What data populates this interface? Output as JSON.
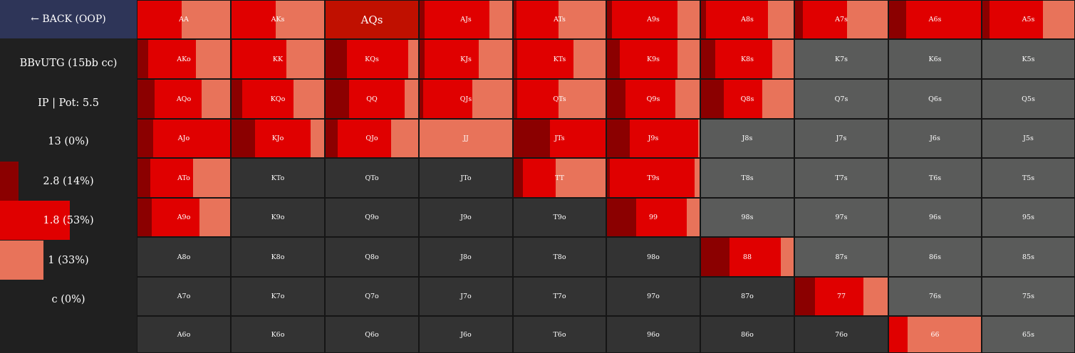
{
  "sidebar": {
    "back_label": "← BACK (OOP)",
    "rows": [
      {
        "text": "BBvUTG (15bb cc)",
        "bar_fraction": 0,
        "bar_color": ""
      },
      {
        "text": "IP | Pot: 5.5",
        "bar_fraction": 0,
        "bar_color": ""
      },
      {
        "text": "13 (0%)",
        "bar_fraction": 0,
        "bar_color": ""
      },
      {
        "text": "2.8 (14%)",
        "bar_fraction": 0.14,
        "bar_color": "#8b0000"
      },
      {
        "text": "1.8 (53%)",
        "bar_fraction": 0.53,
        "bar_color": "#e00000"
      },
      {
        "text": "1 (33%)",
        "bar_fraction": 0.33,
        "bar_color": "#e8735a"
      },
      {
        "text": "c (0%)",
        "bar_fraction": 0,
        "bar_color": ""
      }
    ]
  },
  "colors": {
    "raise_2_8": "#8b0000",
    "raise_1_8": "#e00000",
    "raise_1": "#e8735a",
    "suited_empty": "#5a5b5a",
    "offsuit_empty": "#333333",
    "header_bg": "#2e3558",
    "aqs_highlight": "#c01000"
  },
  "grid": {
    "rows": [
      [
        {
          "hand": "AA",
          "mix": [
            0,
            0.47,
            0.53
          ]
        },
        {
          "hand": "AKs",
          "mix": [
            0,
            0.47,
            0.53
          ]
        },
        {
          "hand": "AQs",
          "mix": [],
          "highlight": true
        },
        {
          "hand": "AJs",
          "mix": [
            0.05,
            0.69,
            0.26
          ]
        },
        {
          "hand": "ATs",
          "mix": [
            0.03,
            0.45,
            0.52
          ]
        },
        {
          "hand": "A9s",
          "mix": [
            0.05,
            0.7,
            0.25
          ]
        },
        {
          "hand": "A8s",
          "mix": [
            0.05,
            0.66,
            0.29
          ]
        },
        {
          "hand": "A7s",
          "mix": [
            0.08,
            0.47,
            0.45
          ]
        },
        {
          "hand": "A6s",
          "mix": [
            0.18,
            0.82,
            0
          ]
        },
        {
          "hand": "A5s",
          "mix": [
            0.08,
            0.57,
            0.35
          ]
        }
      ],
      [
        {
          "hand": "AKo",
          "mix": [
            0.11,
            0.51,
            0.38
          ]
        },
        {
          "hand": "KK",
          "mix": [
            0.01,
            0.57,
            0.42
          ]
        },
        {
          "hand": "KQs",
          "mix": [
            0.23,
            0.65,
            0.12
          ]
        },
        {
          "hand": "KJs",
          "mix": [
            0.05,
            0.58,
            0.37
          ]
        },
        {
          "hand": "KTs",
          "mix": [
            0.04,
            0.6,
            0.36
          ]
        },
        {
          "hand": "K9s",
          "mix": [
            0.14,
            0.61,
            0.25
          ]
        },
        {
          "hand": "K8s",
          "mix": [
            0.15,
            0.61,
            0.24
          ]
        },
        {
          "hand": "K7s",
          "mix": []
        },
        {
          "hand": "K6s",
          "mix": []
        },
        {
          "hand": "K5s",
          "mix": []
        }
      ],
      [
        {
          "hand": "AQo",
          "mix": [
            0.18,
            0.5,
            0.32
          ]
        },
        {
          "hand": "KQo",
          "mix": [
            0.11,
            0.55,
            0.34
          ]
        },
        {
          "hand": "QQ",
          "mix": [
            0.25,
            0.59,
            0.16
          ]
        },
        {
          "hand": "QJs",
          "mix": [
            0.04,
            0.52,
            0.44
          ]
        },
        {
          "hand": "QTs",
          "mix": [
            0.04,
            0.44,
            0.52
          ]
        },
        {
          "hand": "Q9s",
          "mix": [
            0.2,
            0.53,
            0.27
          ]
        },
        {
          "hand": "Q8s",
          "mix": [
            0.24,
            0.41,
            0.35
          ]
        },
        {
          "hand": "Q7s",
          "mix": []
        },
        {
          "hand": "Q6s",
          "mix": []
        },
        {
          "hand": "Q5s",
          "mix": []
        }
      ],
      [
        {
          "hand": "AJo",
          "mix": [
            0.17,
            0.82,
            0.01
          ]
        },
        {
          "hand": "KJo",
          "mix": [
            0.25,
            0.59,
            0.16
          ]
        },
        {
          "hand": "QJo",
          "mix": [
            0.13,
            0.57,
            0.3
          ]
        },
        {
          "hand": "JJ",
          "mix": [
            0,
            0,
            1
          ]
        },
        {
          "hand": "JTs",
          "mix": [
            0.39,
            0.61,
            0
          ]
        },
        {
          "hand": "J9s",
          "mix": [
            0.24,
            0.73,
            0.03
          ]
        },
        {
          "hand": "J8s",
          "mix": []
        },
        {
          "hand": "J7s",
          "mix": []
        },
        {
          "hand": "J6s",
          "mix": []
        },
        {
          "hand": "J5s",
          "mix": []
        }
      ],
      [
        {
          "hand": "ATo",
          "mix": [
            0.14,
            0.45,
            0.41
          ]
        },
        {
          "hand": "KTo",
          "mix": []
        },
        {
          "hand": "QTo",
          "mix": []
        },
        {
          "hand": "JTo",
          "mix": []
        },
        {
          "hand": "TT",
          "mix": [
            0.1,
            0.35,
            0.55
          ]
        },
        {
          "hand": "T9s",
          "mix": [
            0.03,
            0.9,
            0.07
          ]
        },
        {
          "hand": "T8s",
          "mix": []
        },
        {
          "hand": "T7s",
          "mix": []
        },
        {
          "hand": "T6s",
          "mix": []
        },
        {
          "hand": "T5s",
          "mix": []
        }
      ],
      [
        {
          "hand": "A9o",
          "mix": [
            0.15,
            0.51,
            0.34
          ]
        },
        {
          "hand": "K9o",
          "mix": []
        },
        {
          "hand": "Q9o",
          "mix": []
        },
        {
          "hand": "J9o",
          "mix": []
        },
        {
          "hand": "T9o",
          "mix": []
        },
        {
          "hand": "99",
          "mix": [
            0.31,
            0.54,
            0.15
          ]
        },
        {
          "hand": "98s",
          "mix": []
        },
        {
          "hand": "97s",
          "mix": []
        },
        {
          "hand": "96s",
          "mix": []
        },
        {
          "hand": "95s",
          "mix": []
        }
      ],
      [
        {
          "hand": "A8o",
          "mix": []
        },
        {
          "hand": "K8o",
          "mix": []
        },
        {
          "hand": "Q8o",
          "mix": []
        },
        {
          "hand": "J8o",
          "mix": []
        },
        {
          "hand": "T8o",
          "mix": []
        },
        {
          "hand": "98o",
          "mix": []
        },
        {
          "hand": "88",
          "mix": [
            0.3,
            0.55,
            0.15
          ]
        },
        {
          "hand": "87s",
          "mix": []
        },
        {
          "hand": "86s",
          "mix": []
        },
        {
          "hand": "85s",
          "mix": []
        }
      ],
      [
        {
          "hand": "A7o",
          "mix": []
        },
        {
          "hand": "K7o",
          "mix": []
        },
        {
          "hand": "Q7o",
          "mix": []
        },
        {
          "hand": "J7o",
          "mix": []
        },
        {
          "hand": "T7o",
          "mix": []
        },
        {
          "hand": "97o",
          "mix": []
        },
        {
          "hand": "87o",
          "mix": []
        },
        {
          "hand": "77",
          "mix": [
            0.21,
            0.52,
            0.27
          ]
        },
        {
          "hand": "76s",
          "mix": []
        },
        {
          "hand": "75s",
          "mix": []
        }
      ],
      [
        {
          "hand": "A6o",
          "mix": []
        },
        {
          "hand": "K6o",
          "mix": []
        },
        {
          "hand": "Q6o",
          "mix": []
        },
        {
          "hand": "J6o",
          "mix": []
        },
        {
          "hand": "T6o",
          "mix": []
        },
        {
          "hand": "96o",
          "mix": []
        },
        {
          "hand": "86o",
          "mix": []
        },
        {
          "hand": "76o",
          "mix": []
        },
        {
          "hand": "66",
          "mix": [
            0,
            0.2,
            0.8
          ]
        },
        {
          "hand": "65s",
          "mix": []
        }
      ]
    ]
  }
}
